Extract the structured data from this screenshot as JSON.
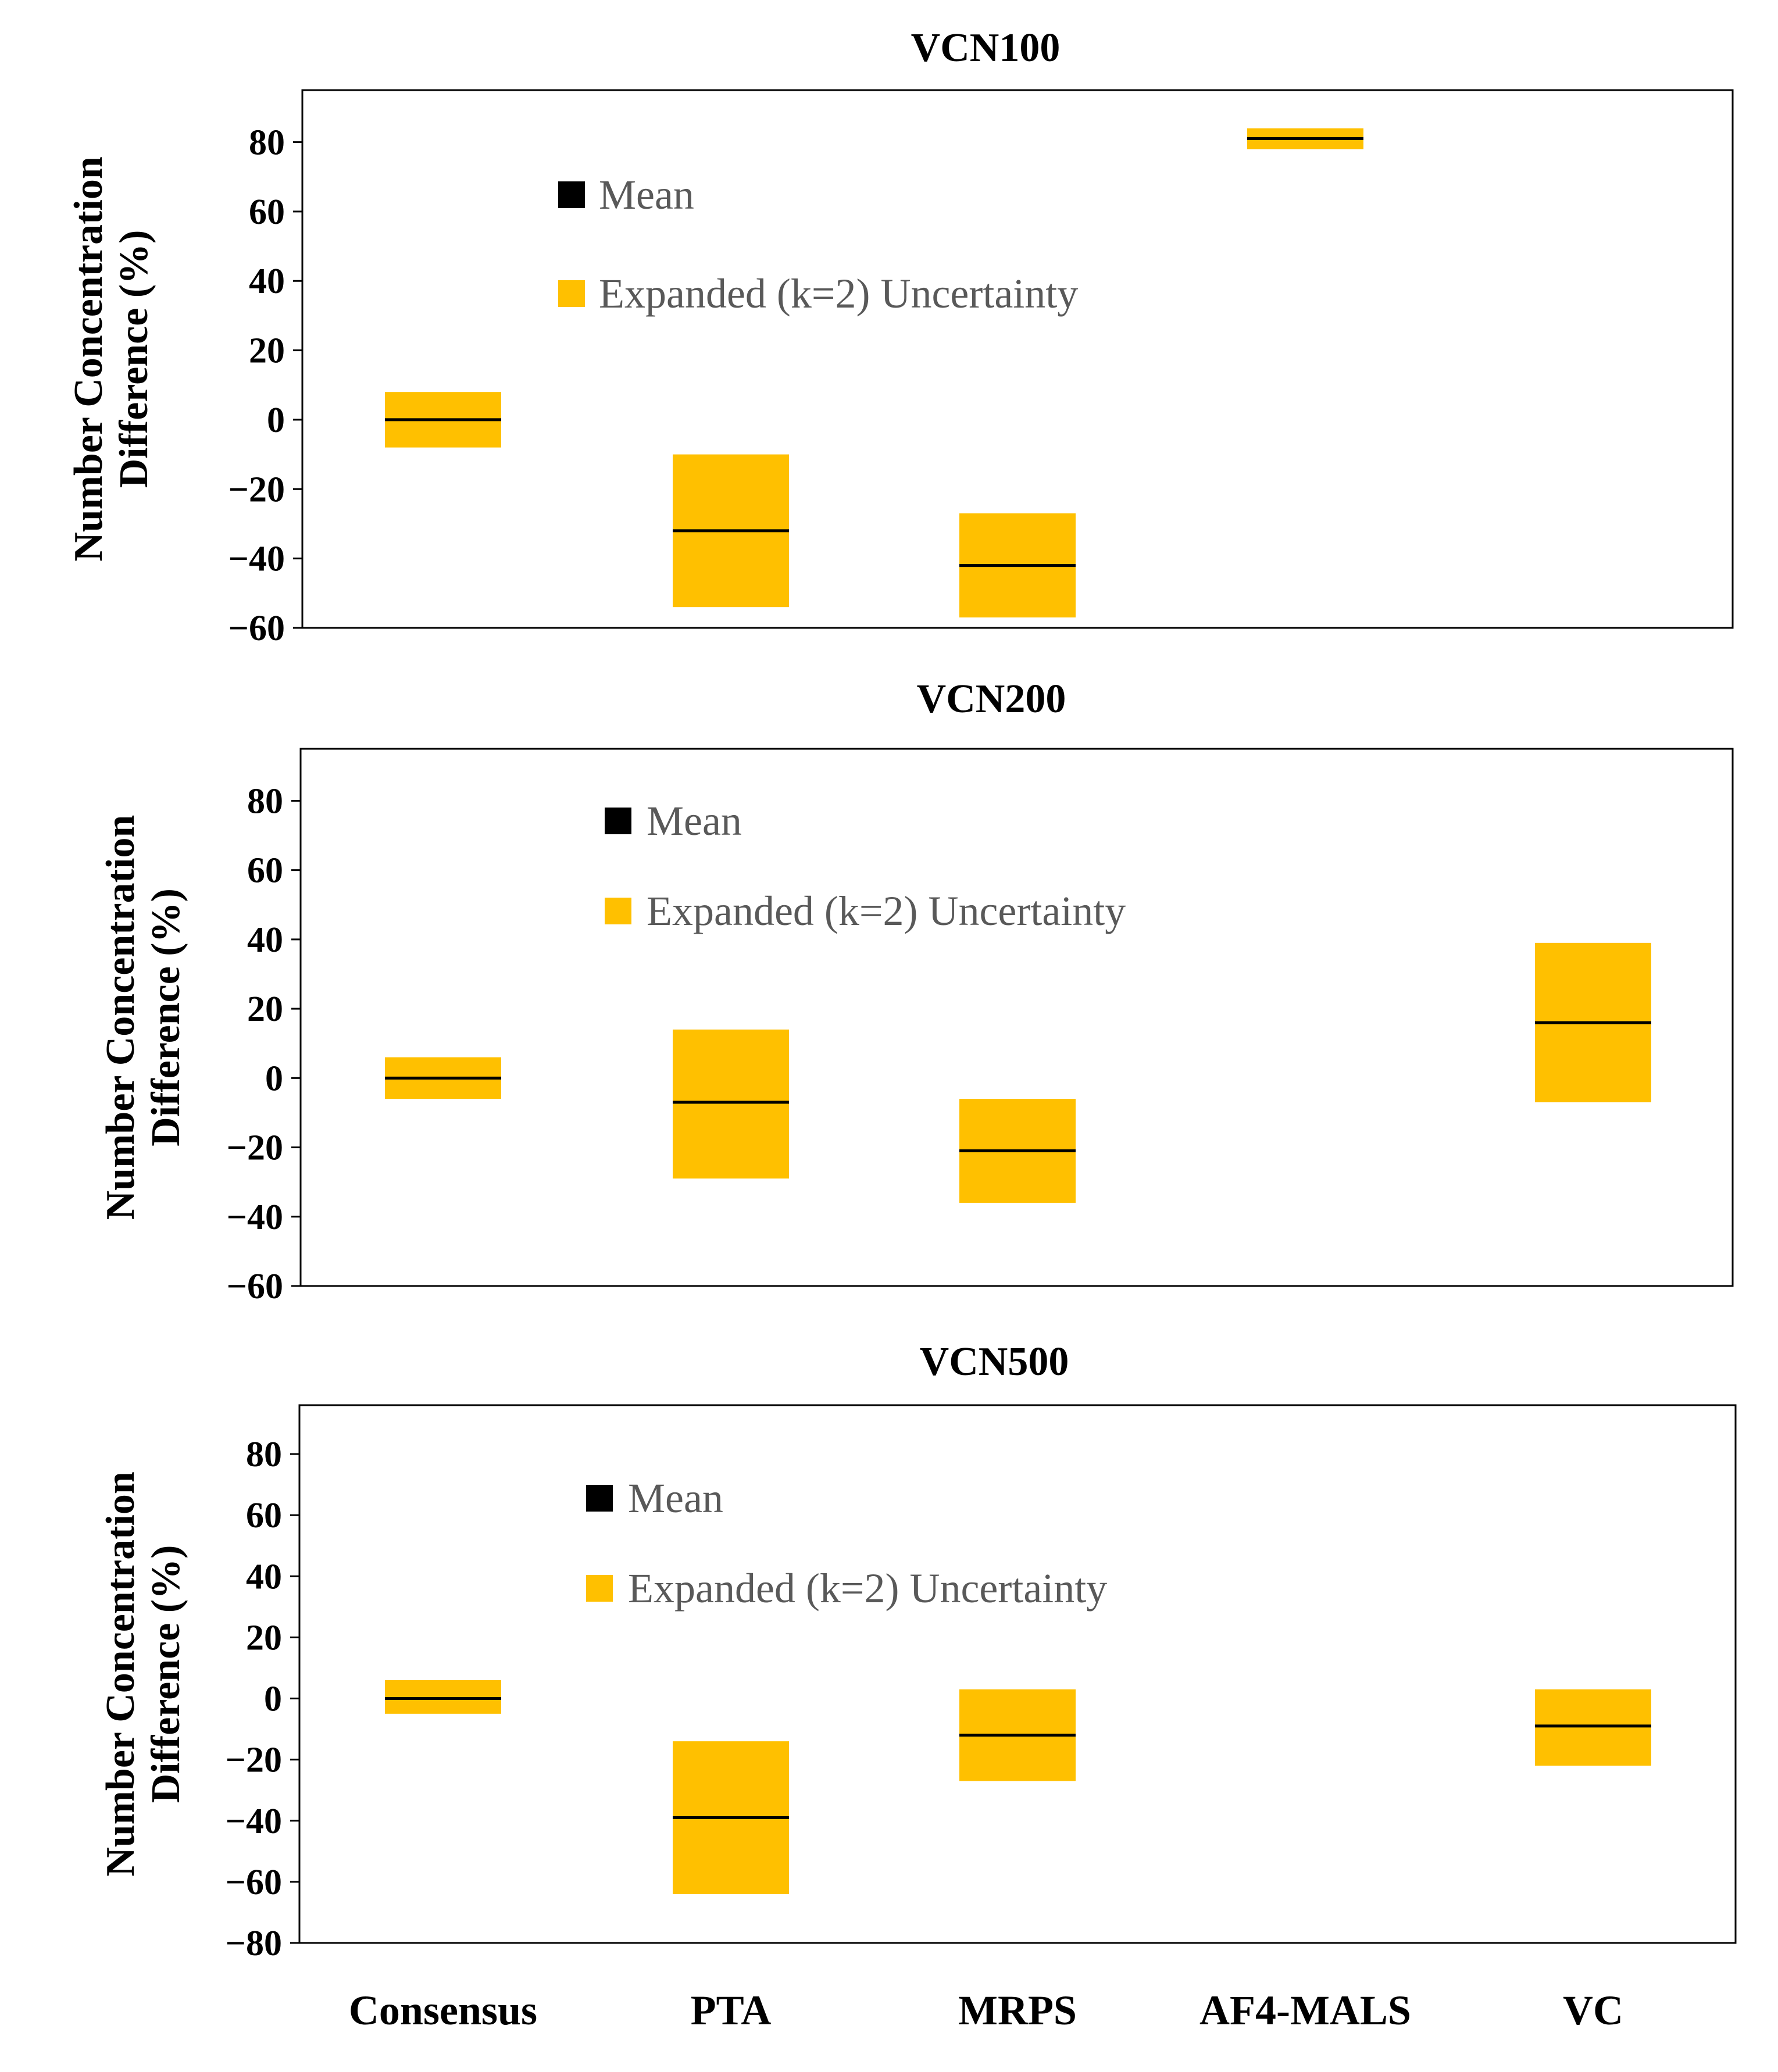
{
  "colors": {
    "uncertainty": "#FFC000",
    "mean": "#000000",
    "legend_text": "#595959",
    "axis": "#000000"
  },
  "x_categories": [
    "Consensus",
    "PTA",
    "MRPS",
    "AF4-MALS",
    "VC"
  ],
  "chart_data": [
    {
      "type": "floating-bar",
      "title": "VCN100",
      "ylabel_lines": [
        "Number Concentration",
        "Difference (%)"
      ],
      "ylim": [
        -60,
        95
      ],
      "yticks": [
        80,
        60,
        40,
        20,
        0,
        -20,
        -40,
        -60
      ],
      "ytick_labels": [
        "80",
        "60",
        "40",
        "20",
        "0",
        "−20",
        "−40",
        "−60"
      ],
      "legend": {
        "mean": "Mean",
        "uncertainty": "Expanded (k=2) Uncertainty"
      },
      "series": [
        {
          "name": "Consensus",
          "mean": 0,
          "low": -8,
          "high": 8
        },
        {
          "name": "PTA",
          "mean": -32,
          "low": -54,
          "high": -10
        },
        {
          "name": "MRPS",
          "mean": -42,
          "low": -57,
          "high": -27
        },
        {
          "name": "AF4-MALS",
          "mean": 81,
          "low": 78,
          "high": 84
        }
      ]
    },
    {
      "type": "floating-bar",
      "title": "VCN200",
      "ylabel_lines": [
        "Number Concentration",
        "Difference (%)"
      ],
      "ylim": [
        -60,
        95
      ],
      "yticks": [
        80,
        60,
        40,
        20,
        0,
        -20,
        -40,
        -60
      ],
      "ytick_labels": [
        "80",
        "60",
        "40",
        "20",
        "0",
        "−20",
        "−40",
        "−60"
      ],
      "legend": {
        "mean": "Mean",
        "uncertainty": "Expanded (k=2) Uncertainty"
      },
      "series": [
        {
          "name": "Consensus",
          "mean": 0,
          "low": -6,
          "high": 6
        },
        {
          "name": "PTA",
          "mean": -7,
          "low": -29,
          "high": 14
        },
        {
          "name": "MRPS",
          "mean": -21,
          "low": -36,
          "high": -6
        },
        {
          "name": "VC",
          "mean": 16,
          "low": -7,
          "high": 39
        }
      ]
    },
    {
      "type": "floating-bar",
      "title": "VCN500",
      "ylabel_lines": [
        "Number Concentration",
        "Difference (%)"
      ],
      "ylim": [
        -80,
        96
      ],
      "yticks": [
        80,
        60,
        40,
        20,
        0,
        -20,
        -40,
        -60,
        -80
      ],
      "ytick_labels": [
        "80",
        "60",
        "40",
        "20",
        "0",
        "−20",
        "−40",
        "−60",
        "−80"
      ],
      "legend": {
        "mean": "Mean",
        "uncertainty": "Expanded (k=2) Uncertainty"
      },
      "series": [
        {
          "name": "Consensus",
          "mean": 0,
          "low": -5,
          "high": 6
        },
        {
          "name": "PTA",
          "mean": -39,
          "low": -64,
          "high": -14
        },
        {
          "name": "MRPS",
          "mean": -12,
          "low": -27,
          "high": 3
        },
        {
          "name": "VC",
          "mean": -9,
          "low": -22,
          "high": 3
        }
      ]
    }
  ]
}
